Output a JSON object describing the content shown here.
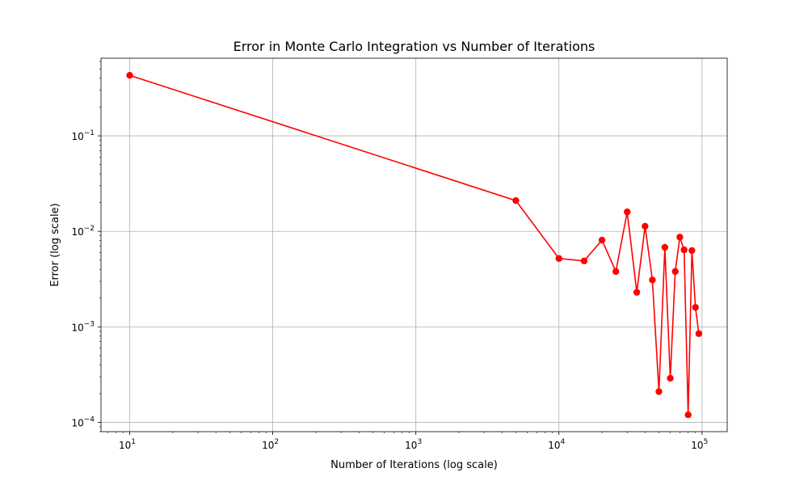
{
  "chart_data": {
    "type": "line",
    "title": "Error in Monte Carlo Integration vs Number of Iterations",
    "xlabel": "Number of Iterations (log scale)",
    "ylabel": "Error (log scale)",
    "xscale": "log",
    "yscale": "log",
    "xlim": [
      6.3,
      150000
    ],
    "ylim": [
      8e-05,
      0.65
    ],
    "grid": true,
    "line_color": "#ff0000",
    "marker": "circle",
    "x_ticks": [
      {
        "value": 10,
        "base": "10",
        "exp": "1"
      },
      {
        "value": 100,
        "base": "10",
        "exp": "2"
      },
      {
        "value": 1000,
        "base": "10",
        "exp": "3"
      },
      {
        "value": 10000,
        "base": "10",
        "exp": "4"
      },
      {
        "value": 100000,
        "base": "10",
        "exp": "5"
      }
    ],
    "y_ticks": [
      {
        "value": 0.0001,
        "base": "10",
        "exp": "−4"
      },
      {
        "value": 0.001,
        "base": "10",
        "exp": "−3"
      },
      {
        "value": 0.01,
        "base": "10",
        "exp": "−2"
      },
      {
        "value": 0.1,
        "base": "10",
        "exp": "−1"
      }
    ],
    "series": [
      {
        "x": [
          10,
          5000,
          10000,
          15000,
          20000,
          25000,
          30000,
          35000,
          40000,
          45000,
          50000,
          55000,
          60000,
          65000,
          70000,
          75000,
          80000,
          85000,
          90000,
          95000
        ],
        "y": [
          0.43,
          0.021,
          0.0052,
          0.0049,
          0.0081,
          0.0038,
          0.016,
          0.0023,
          0.0113,
          0.0031,
          0.00021,
          0.0068,
          0.00029,
          0.0038,
          0.0087,
          0.0064,
          0.00012,
          0.0063,
          0.0016,
          0.00085
        ]
      }
    ]
  }
}
